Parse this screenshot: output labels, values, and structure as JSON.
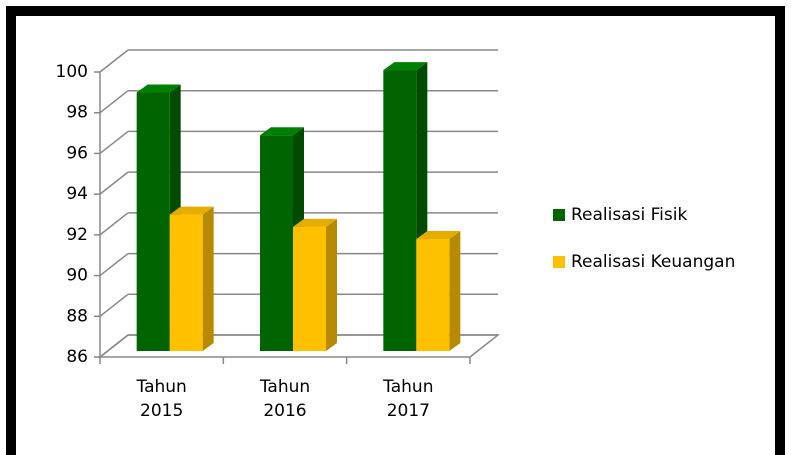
{
  "chart_data": {
    "type": "bar3d",
    "categories": [
      "Tahun 2015",
      "Tahun 2016",
      "Tahun 2017"
    ],
    "series": [
      {
        "name": "Realisasi Fisik",
        "color": "#006400",
        "values": [
          98.7,
          96.6,
          99.8
        ]
      },
      {
        "name": "Realisasi Keuangan",
        "color": "#ffc000",
        "values": [
          92.7,
          92.1,
          91.5
        ]
      }
    ],
    "ylim": [
      86,
      100
    ],
    "yticks": [
      86,
      88,
      90,
      92,
      94,
      96,
      98,
      100
    ],
    "grid": true,
    "legend": "right"
  }
}
